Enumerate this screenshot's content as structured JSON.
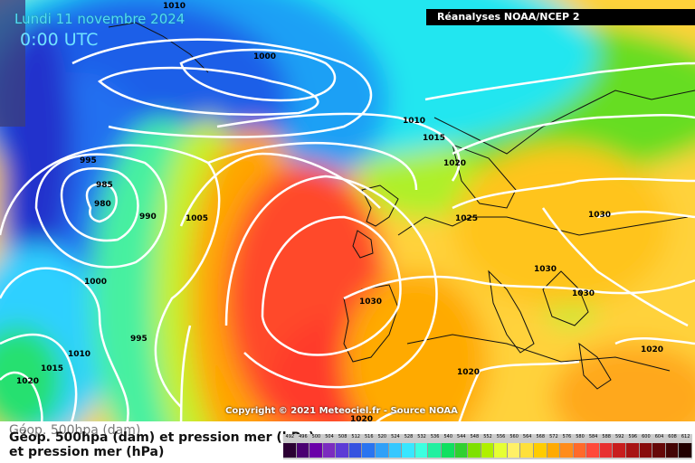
{
  "header": {
    "date": "Lundi 11 novembre 2024",
    "time": "0:00 UTC",
    "source": "Réanalyses NOAA/NCEP 2"
  },
  "copyright": "Copyright © 2021 Meteociel.fr - Source NOAA",
  "legend": {
    "line1": "Géop. 500hpa (dam)",
    "line2": "Géop. 500hpa (dam) et pression mer (hPa)",
    "line3": "et pression mer (hPa)",
    "ticks": [
      "492",
      "496",
      "500",
      "504",
      "508",
      "512",
      "516",
      "520",
      "524",
      "528",
      "532",
      "536",
      "540",
      "544",
      "548",
      "552",
      "556",
      "560",
      "564",
      "568",
      "572",
      "576",
      "580",
      "584",
      "588",
      "592",
      "596",
      "600",
      "604",
      "608",
      "612"
    ],
    "colors": [
      "#2b0033",
      "#4b0072",
      "#6a00a8",
      "#7b2cbf",
      "#5c3bd6",
      "#3552e0",
      "#2a74f0",
      "#2fa0f8",
      "#35c8ff",
      "#38e6ff",
      "#3cffe0",
      "#22f0a0",
      "#10e060",
      "#30d030",
      "#7ee000",
      "#b0f000",
      "#e6ff33",
      "#fff066",
      "#ffe03a",
      "#ffcc00",
      "#ffaa00",
      "#ff8c1a",
      "#ff6a2a",
      "#ff4a3a",
      "#e83030",
      "#c81e1e",
      "#a81414",
      "#880c0c",
      "#660808",
      "#440404",
      "#220000"
    ]
  },
  "map": {
    "isobars": [
      "1010",
      "1000",
      "1010",
      "1015",
      "1020",
      "995",
      "985",
      "980",
      "990",
      "1005",
      "1025",
      "1030",
      "1030",
      "1030",
      "1030",
      "1000",
      "1010",
      "995",
      "1015",
      "1020",
      "1020",
      "1020",
      "1020"
    ]
  }
}
